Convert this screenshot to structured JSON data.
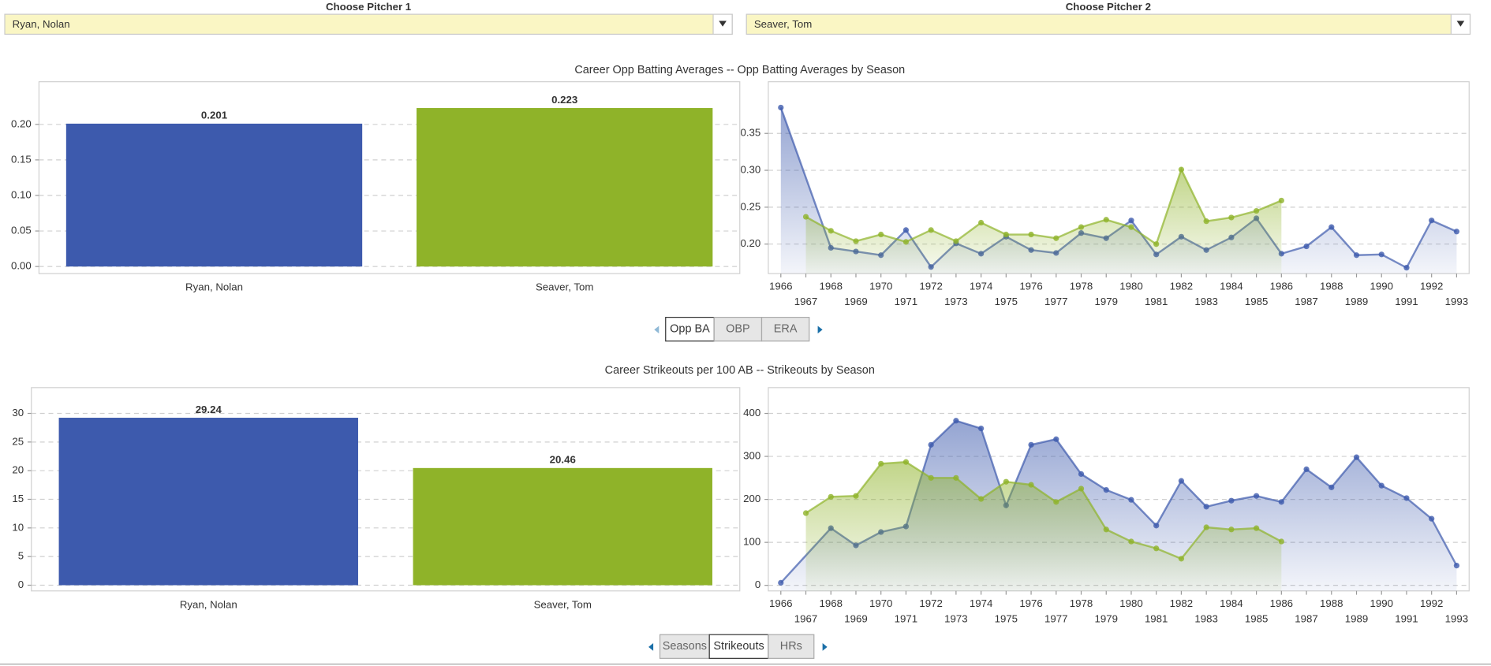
{
  "controls": {
    "pitcher1": {
      "label": "Choose Pitcher 1",
      "value": "Ryan, Nolan"
    },
    "pitcher2": {
      "label": "Choose Pitcher 2",
      "value": "Seaver, Tom"
    }
  },
  "sections": [
    {
      "title": "Career Opp Batting Averages -- Opp Batting Averages by Season",
      "buttons": [
        "Opp BA",
        "OBP",
        "ERA"
      ],
      "active": 0
    },
    {
      "title": "Career Strikeouts per 100 AB -- Strikeouts by Season",
      "buttons": [
        "Seasons",
        "Strikeouts",
        "HRs"
      ],
      "active": 1
    }
  ],
  "chart_data": [
    {
      "type": "bar",
      "categories": [
        "Ryan, Nolan",
        "Seaver, Tom"
      ],
      "values": [
        0.201,
        0.223
      ],
      "colors": [
        "#3d5aad",
        "#8fb329"
      ],
      "ylim": [
        -0.01,
        0.26
      ],
      "yticks": [
        {
          "value": 0,
          "label": "0.00"
        },
        {
          "value": 0.05,
          "label": "0.05"
        },
        {
          "value": 0.1,
          "label": "0.10"
        },
        {
          "value": 0.15,
          "label": "0.15"
        },
        {
          "value": 0.2,
          "label": "0.20"
        }
      ],
      "grid": true
    },
    {
      "type": "line",
      "xlim": [
        1965.5,
        1993.5
      ],
      "xticks": [
        1966,
        1967,
        1968,
        1969,
        1970,
        1971,
        1972,
        1973,
        1974,
        1975,
        1976,
        1977,
        1978,
        1979,
        1980,
        1981,
        1982,
        1983,
        1984,
        1985,
        1986,
        1987,
        1988,
        1989,
        1990,
        1991,
        1992,
        1993
      ],
      "ylim": [
        0.16,
        0.42
      ],
      "yticks": [
        {
          "value": 0.2,
          "label": "0.20"
        },
        {
          "value": 0.25,
          "label": "0.25"
        },
        {
          "value": 0.3,
          "label": "0.30"
        },
        {
          "value": 0.35,
          "label": "0.35"
        }
      ],
      "grid": true,
      "series": [
        {
          "name": "Ryan, Nolan",
          "color": "#3d5aad",
          "x": [
            1966,
            1968,
            1969,
            1970,
            1971,
            1972,
            1973,
            1974,
            1975,
            1976,
            1977,
            1978,
            1979,
            1980,
            1981,
            1982,
            1983,
            1984,
            1985,
            1986,
            1987,
            1988,
            1989,
            1990,
            1991,
            1992,
            1993
          ],
          "values": [
            0.385,
            0.195,
            0.19,
            0.185,
            0.219,
            0.169,
            0.201,
            0.187,
            0.21,
            0.192,
            0.188,
            0.215,
            0.208,
            0.232,
            0.186,
            0.21,
            0.192,
            0.209,
            0.235,
            0.187,
            0.197,
            0.223,
            0.185,
            0.186,
            0.168,
            0.232,
            0.217
          ]
        },
        {
          "name": "Seaver, Tom",
          "color": "#8fb329",
          "x": [
            1967,
            1968,
            1969,
            1970,
            1971,
            1972,
            1973,
            1974,
            1975,
            1976,
            1977,
            1978,
            1979,
            1980,
            1981,
            1982,
            1983,
            1984,
            1985,
            1986
          ],
          "values": [
            0.237,
            0.218,
            0.204,
            0.213,
            0.203,
            0.219,
            0.204,
            0.229,
            0.213,
            0.213,
            0.208,
            0.223,
            0.233,
            0.223,
            0.2,
            0.301,
            0.231,
            0.236,
            0.245,
            0.259
          ]
        }
      ]
    },
    {
      "type": "bar",
      "categories": [
        "Ryan, Nolan",
        "Seaver, Tom"
      ],
      "values": [
        29.24,
        20.46
      ],
      "colors": [
        "#3d5aad",
        "#8fb329"
      ],
      "ylim": [
        -1,
        34.5
      ],
      "yticks": [
        0,
        5,
        10,
        15,
        20,
        25,
        30
      ],
      "grid": true
    },
    {
      "type": "line",
      "xlim": [
        1965.5,
        1993.5
      ],
      "xticks": [
        1966,
        1967,
        1968,
        1969,
        1970,
        1971,
        1972,
        1973,
        1974,
        1975,
        1976,
        1977,
        1978,
        1979,
        1980,
        1981,
        1982,
        1983,
        1984,
        1985,
        1986,
        1987,
        1988,
        1989,
        1990,
        1991,
        1992,
        1993
      ],
      "ylim": [
        -13,
        460
      ],
      "yticks": [
        0,
        100,
        200,
        300,
        400
      ],
      "grid": true,
      "series": [
        {
          "name": "Ryan, Nolan",
          "color": "#3d5aad",
          "x": [
            1966,
            1968,
            1969,
            1970,
            1971,
            1972,
            1973,
            1974,
            1975,
            1976,
            1977,
            1978,
            1979,
            1980,
            1981,
            1982,
            1983,
            1984,
            1985,
            1986,
            1987,
            1988,
            1989,
            1990,
            1991,
            1992,
            1993
          ],
          "values": [
            6,
            133,
            93,
            124,
            137,
            327,
            383,
            365,
            186,
            327,
            340,
            259,
            222,
            199,
            139,
            243,
            183,
            197,
            208,
            194,
            270,
            228,
            298,
            232,
            203,
            155,
            46
          ]
        },
        {
          "name": "Seaver, Tom",
          "color": "#8fb329",
          "x": [
            1967,
            1968,
            1969,
            1970,
            1971,
            1972,
            1973,
            1974,
            1975,
            1976,
            1977,
            1978,
            1979,
            1980,
            1981,
            1982,
            1983,
            1984,
            1985,
            1986
          ],
          "values": [
            168,
            206,
            208,
            283,
            287,
            250,
            250,
            201,
            241,
            234,
            194,
            225,
            130,
            102,
            86,
            62,
            135,
            130,
            133,
            102
          ]
        }
      ]
    }
  ]
}
